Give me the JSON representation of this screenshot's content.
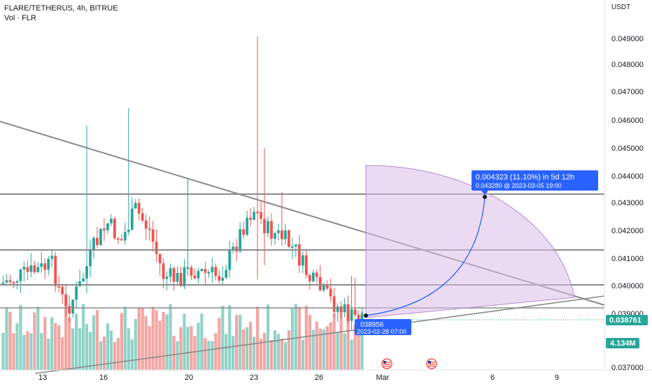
{
  "header": {
    "title": "FLARE/TETHERUS, 4h, BITRUE",
    "volume_label": "Vol · FLR"
  },
  "price_axis": {
    "currency": "USDT",
    "ticks": [
      "0.049000",
      "0.048000",
      "0.047000",
      "0.046000",
      "0.045000",
      "0.044000",
      "0.043000",
      "0.042000",
      "0.041000",
      "0.040000",
      "0.039000",
      "0.037000"
    ],
    "last_price": "0.038761",
    "last_price_color": "#26a69a",
    "volume_value": "4.134M",
    "volume_color": "#26a69a"
  },
  "time_axis": {
    "ticks": [
      "13",
      "16",
      "20",
      "23",
      "26",
      "Mar",
      "6",
      "9"
    ]
  },
  "measure_tool": {
    "line1": "0.004323 (11.10%) in 5d 12h",
    "line2": "0.043280 @ 2023-03-05   19:00",
    "start_price": "0.038956",
    "start_price_shown": "038956",
    "start_date": "2023-02-28 07:00",
    "accent": "#2962ff",
    "fill": "#d8b8e8"
  },
  "colors": {
    "up": "#26a69a",
    "down": "#ef5350",
    "up_vol": "#8fd3c7",
    "down_vol": "#f3a5a3",
    "lines": "#8a8a8a"
  },
  "icons": [
    "us-flag-event-icon",
    "us-flag-event-icon"
  ]
}
